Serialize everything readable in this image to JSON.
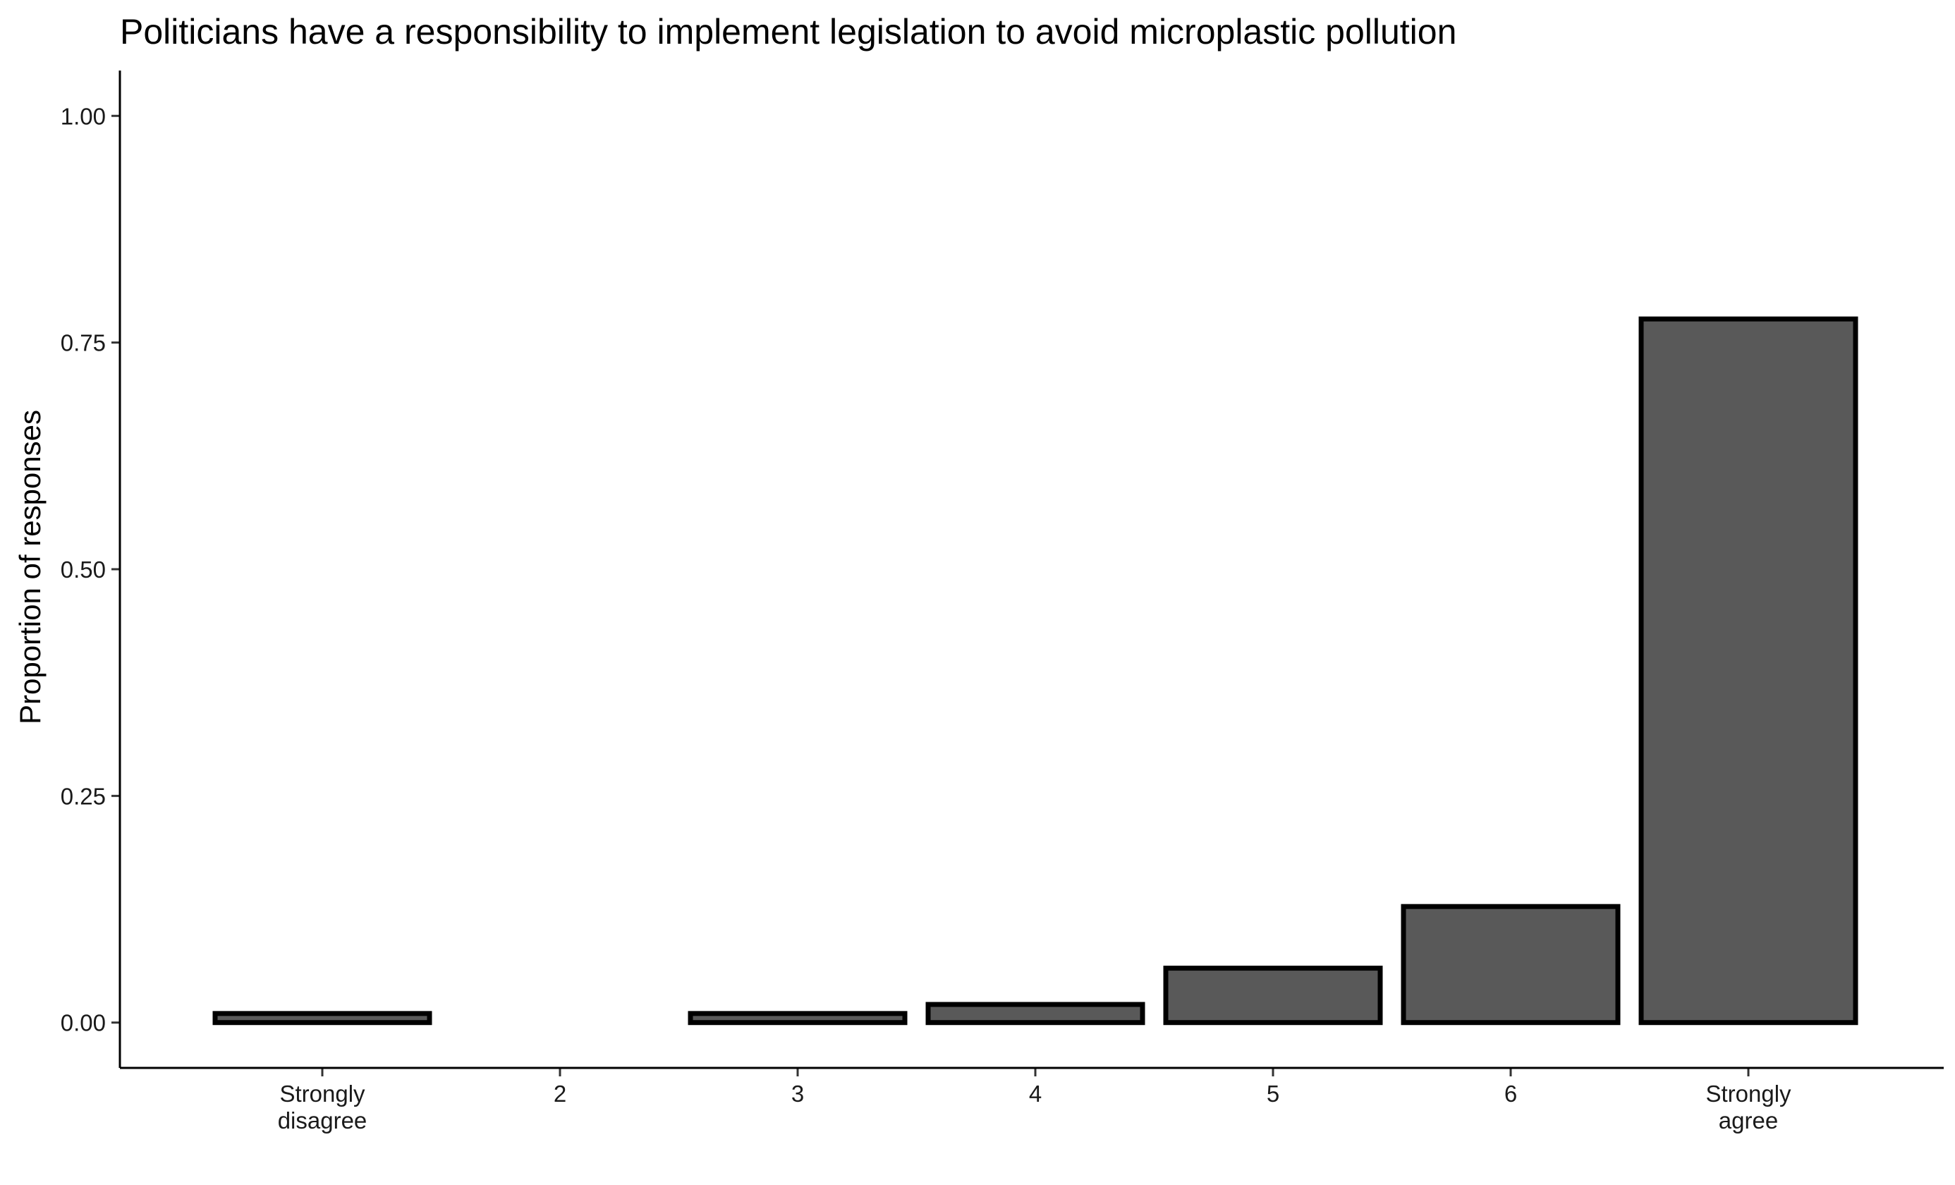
{
  "chart_data": {
    "type": "bar",
    "title": "Politicians have a responsibility to implement legislation to avoid microplastic pollution",
    "xlabel": "",
    "ylabel": "Proportion of responses",
    "categories": [
      "Strongly\ndisagree",
      "2",
      "3",
      "4",
      "5",
      "6",
      "Strongly\nagree"
    ],
    "values": [
      0.01,
      0.0,
      0.01,
      0.02,
      0.06,
      0.128,
      0.776
    ],
    "y_ticks": [
      "0.00",
      "0.25",
      "0.50",
      "0.75",
      "1.00"
    ],
    "ylim": [
      -0.05,
      1.05
    ],
    "grid": false,
    "legend": "none",
    "colors": {
      "bar_fill": "#595959",
      "bar_stroke": "#000000",
      "axis": "#000000"
    }
  }
}
